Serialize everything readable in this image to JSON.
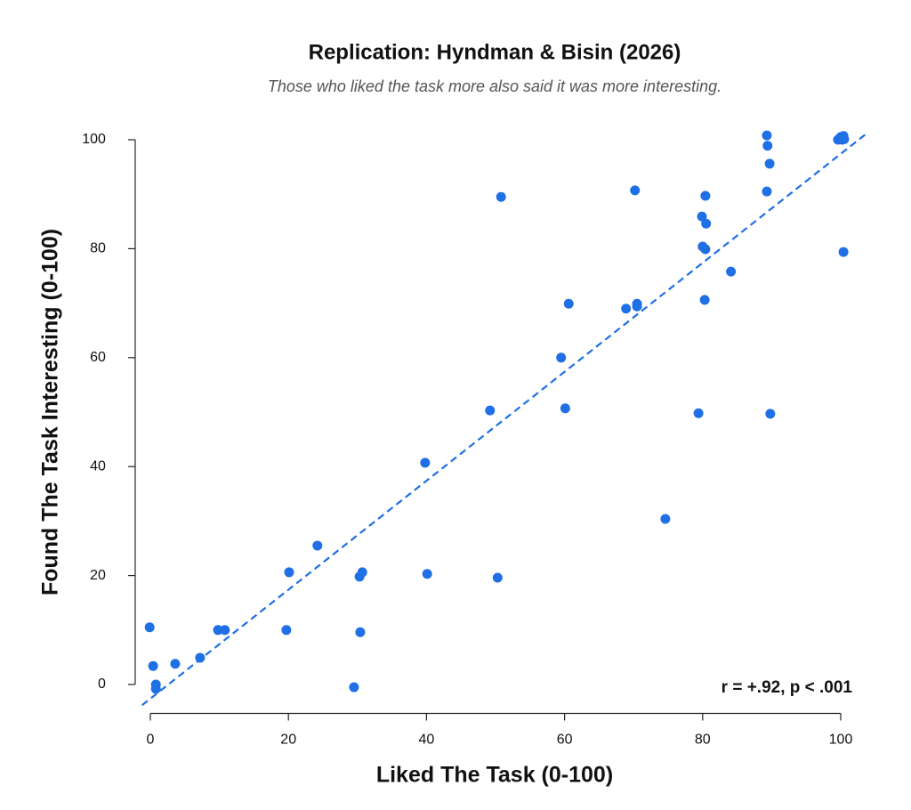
{
  "chart_data": {
    "type": "scatter",
    "title": "Replication: Hyndman & Bisin (2026)",
    "subtitle": "Those who liked the task more also said it was more interesting.",
    "x_label": "Liked The Task (0-100)",
    "y_label": "Found The Task Interesting (0-100)",
    "annotation": "r = +.92, p < .001",
    "color": "#1f6fe5",
    "grid": false,
    "xlim": [
      -4,
      104
    ],
    "ylim": [
      -4,
      104
    ],
    "xticks": [
      0,
      20,
      40,
      60,
      80,
      100
    ],
    "yticks": [
      0,
      20,
      40,
      60,
      80,
      100
    ],
    "trend_line": {
      "slope": 1.0,
      "intercept": -2.6,
      "x_range": [
        -1.2,
        103.9
      ]
    },
    "x": [
      -0.1,
      0.4,
      0.8,
      0.8,
      3.6,
      7.2,
      9.8,
      10.8,
      19.7,
      20.1,
      24.2,
      29.5,
      30.3,
      30.7,
      30.4,
      39.8,
      40.1,
      49.2,
      50.3,
      50.8,
      59.5,
      60.1,
      60.6,
      68.9,
      70.2,
      70.5,
      70.5,
      74.6,
      79.4,
      79.9,
      80.0,
      80.4,
      80.3,
      80.4,
      80.5,
      84.1,
      89.3,
      89.4,
      89.3,
      89.7,
      89.8,
      99.6,
      100.0,
      100.4,
      100.2,
      100.5,
      100.4
    ],
    "values": [
      10.5,
      3.4,
      0,
      -0.8,
      3.8,
      4.9,
      10.0,
      10.0,
      10.0,
      20.6,
      25.5,
      -0.5,
      19.8,
      20.6,
      9.6,
      40.7,
      20.3,
      50.3,
      19.6,
      89.5,
      60.0,
      50.7,
      69.9,
      69.0,
      90.7,
      69.4,
      69.9,
      30.4,
      49.8,
      85.9,
      80.4,
      79.9,
      70.6,
      89.7,
      84.6,
      75.8,
      100.8,
      98.9,
      90.5,
      95.6,
      49.7,
      100.0,
      100.5,
      100.7,
      100.0,
      100.1,
      79.4
    ]
  }
}
